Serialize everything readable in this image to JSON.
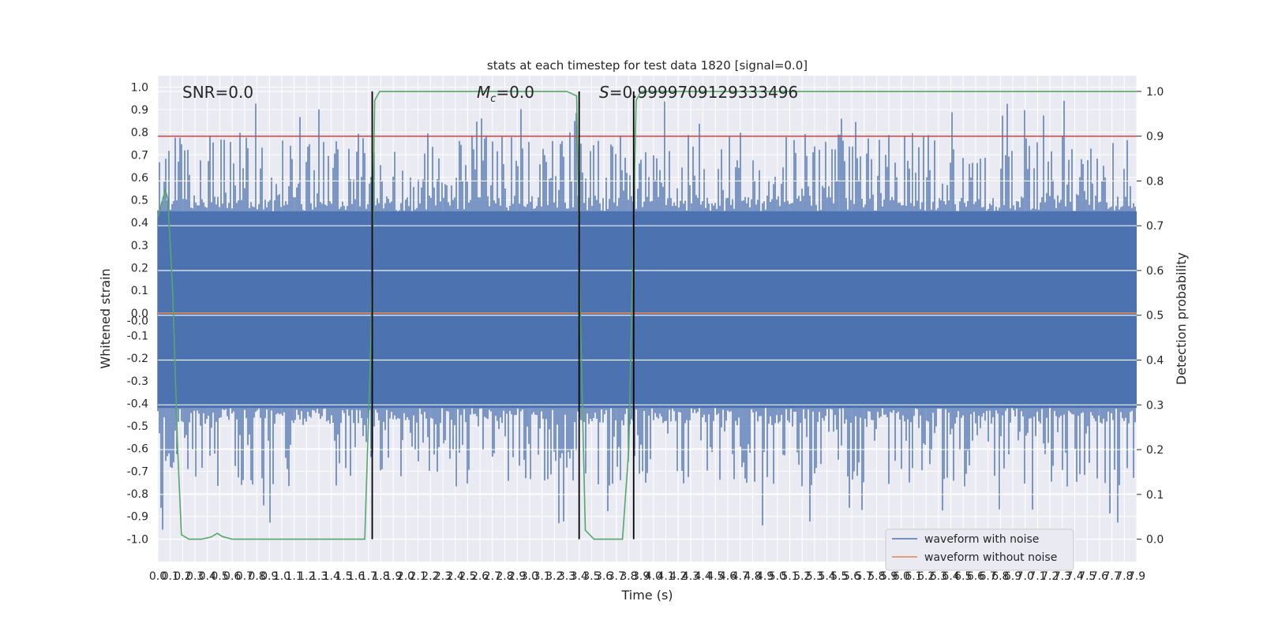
{
  "chart_data": {
    "type": "line",
    "title": "stats at each timestep for test data 1820 [signal=0.0]",
    "xlabel": "Time (s)",
    "ylabel_left": "Whitened strain",
    "ylabel_right": "Detection probability",
    "xlim": [
      0.0,
      7.9
    ],
    "ylim_left": [
      -1.1,
      1.05
    ],
    "ylim_right": [
      -0.05,
      1.035
    ],
    "x_ticks": [
      "0.0",
      "0.1",
      "0.2",
      "0.3",
      "0.4",
      "0.5",
      "0.6",
      "0.7",
      "0.8",
      "0.9",
      "1.0",
      "1.1",
      "1.2",
      "1.3",
      "1.4",
      "1.5",
      "1.6",
      "1.7",
      "1.8",
      "1.9",
      "2.0",
      "2.1",
      "2.2",
      "2.3",
      "2.4",
      "2.5",
      "2.6",
      "2.7",
      "2.8",
      "2.9",
      "3.0",
      "3.1",
      "3.2",
      "3.3",
      "3.4",
      "3.5",
      "3.6",
      "3.7",
      "3.8",
      "3.9",
      "4.0",
      "4.1",
      "4.2",
      "4.3",
      "4.4",
      "4.5",
      "4.6",
      "4.7",
      "4.8",
      "4.9",
      "5.0",
      "5.1",
      "5.2",
      "5.3",
      "5.4",
      "5.5",
      "5.6",
      "5.7",
      "5.8",
      "5.9",
      "6.0",
      "6.1",
      "6.2",
      "6.3",
      "6.4",
      "6.5",
      "6.6",
      "6.7",
      "6.8",
      "6.9",
      "7.0",
      "7.1",
      "7.2",
      "7.3",
      "7.4",
      "7.5",
      "7.6",
      "7.7",
      "7.8",
      "7.9"
    ],
    "y_ticks_left": [
      "1.0",
      "0.9",
      "0.8",
      "0.7",
      "0.6",
      "0.5",
      "0.4",
      "0.3",
      "0.2",
      "0.1",
      "0.0",
      "-0.0",
      "-0.1",
      "-0.2",
      "-0.3",
      "-0.4",
      "-0.5",
      "-0.6",
      "-0.7",
      "-0.8",
      "-0.9",
      "-1.0"
    ],
    "y_ticks_right": [
      "1.0",
      "0.9",
      "0.8",
      "0.7",
      "0.6",
      "0.5",
      "0.4",
      "0.3",
      "0.2",
      "0.1",
      "0.0"
    ],
    "annotations": {
      "snr": "SNR=0.0",
      "mc_symbol": "M",
      "mc_sub": "c",
      "mc_value": "=0.0",
      "s_symbol": "S",
      "s_value": "=0.9999709129333496"
    },
    "threshold": {
      "value": 0.9,
      "axis": "right",
      "color": "#c44e52"
    },
    "vertical_lines": [
      1.73,
      3.4,
      3.84
    ],
    "series": [
      {
        "name": "waveform with noise",
        "color": "#4c72b0",
        "kind": "noise",
        "band_low": -0.42,
        "band_high": 0.45,
        "peak_high": 0.94,
        "peak_low": -0.96
      },
      {
        "name": "waveform without noise",
        "color": "#dd8452",
        "kind": "constant",
        "value": 0.0
      },
      {
        "name": "",
        "color": "#55a868",
        "axis": "right",
        "points": [
          [
            0.0,
            0.72
          ],
          [
            0.06,
            0.78
          ],
          [
            0.08,
            0.76
          ],
          [
            0.12,
            0.55
          ],
          [
            0.16,
            0.2
          ],
          [
            0.19,
            0.01
          ],
          [
            0.25,
            0.0
          ],
          [
            0.35,
            0.0
          ],
          [
            0.43,
            0.005
          ],
          [
            0.48,
            0.013
          ],
          [
            0.52,
            0.006
          ],
          [
            0.6,
            0.0
          ],
          [
            1.0,
            0.0
          ],
          [
            1.4,
            0.0
          ],
          [
            1.67,
            0.0
          ],
          [
            1.72,
            0.45
          ],
          [
            1.75,
            0.98
          ],
          [
            1.79,
            1.0
          ],
          [
            2.5,
            1.0
          ],
          [
            3.3,
            1.0
          ],
          [
            3.38,
            0.99
          ],
          [
            3.41,
            0.5
          ],
          [
            3.45,
            0.02
          ],
          [
            3.52,
            0.0
          ],
          [
            3.75,
            0.0
          ],
          [
            3.8,
            0.2
          ],
          [
            3.86,
            0.98
          ],
          [
            3.9,
            1.0
          ],
          [
            5.0,
            1.0
          ],
          [
            7.9,
            1.0
          ]
        ]
      }
    ],
    "legend": {
      "placement": "lower-right",
      "entries": [
        "waveform with noise",
        "waveform without noise"
      ]
    },
    "grid": true
  }
}
